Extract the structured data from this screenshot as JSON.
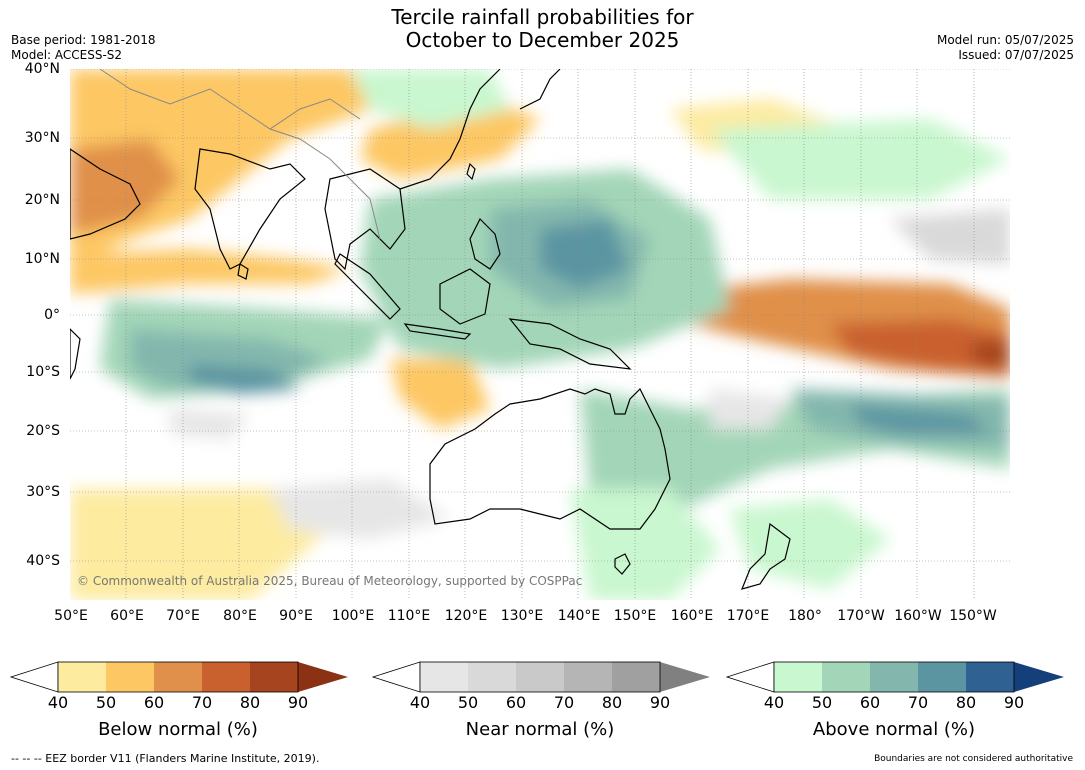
{
  "header": {
    "title_line1": "Tercile rainfall probabilities for",
    "title_line2": "October to December 2025",
    "base_period": "Base period: 1981-2018",
    "model": "Model: ACCESS-S2",
    "model_run": "Model run: 05/07/2025",
    "issued": "Issued: 07/07/2025"
  },
  "map": {
    "lat_labels": [
      "40°N",
      "30°N",
      "20°N",
      "10°N",
      "0°",
      "10°S",
      "20°S",
      "30°S",
      "40°S"
    ],
    "lon_labels": [
      "50°E",
      "60°E",
      "70°E",
      "80°E",
      "90°E",
      "100°E",
      "110°E",
      "120°E",
      "130°E",
      "140°E",
      "150°E",
      "160°E",
      "170°E",
      "180°",
      "170°W",
      "160°W",
      "150°W"
    ],
    "copyright": "© Commonwealth of Australia 2025, Bureau of Meteorology, supported by COSPPac"
  },
  "legend": {
    "below": {
      "title": "Below normal (%)",
      "ticks": [
        "40",
        "50",
        "60",
        "70",
        "80",
        "90"
      ],
      "colors": [
        "#fdeba0",
        "#fdc763",
        "#e0904a",
        "#c9612f",
        "#a5441f",
        "#8b3215"
      ]
    },
    "near": {
      "title": "Near normal (%)",
      "ticks": [
        "40",
        "50",
        "60",
        "70",
        "80",
        "90"
      ],
      "colors": [
        "#e6e6e6",
        "#d9d9d9",
        "#c9c9c9",
        "#b5b5b5",
        "#a0a0a0",
        "#808080"
      ]
    },
    "above": {
      "title": "Above normal (%)",
      "ticks": [
        "40",
        "50",
        "60",
        "70",
        "80",
        "90"
      ],
      "colors": [
        "#c9f7cf",
        "#a3d6b8",
        "#83b7ad",
        "#5c95a2",
        "#2f6193",
        "#143f7a"
      ]
    }
  },
  "footer": {
    "eez": "--  --  -- EEZ border V11 (Flanders Marine Institute, 2019).",
    "disclaimer": "Boundaries are not considered authoritative"
  }
}
